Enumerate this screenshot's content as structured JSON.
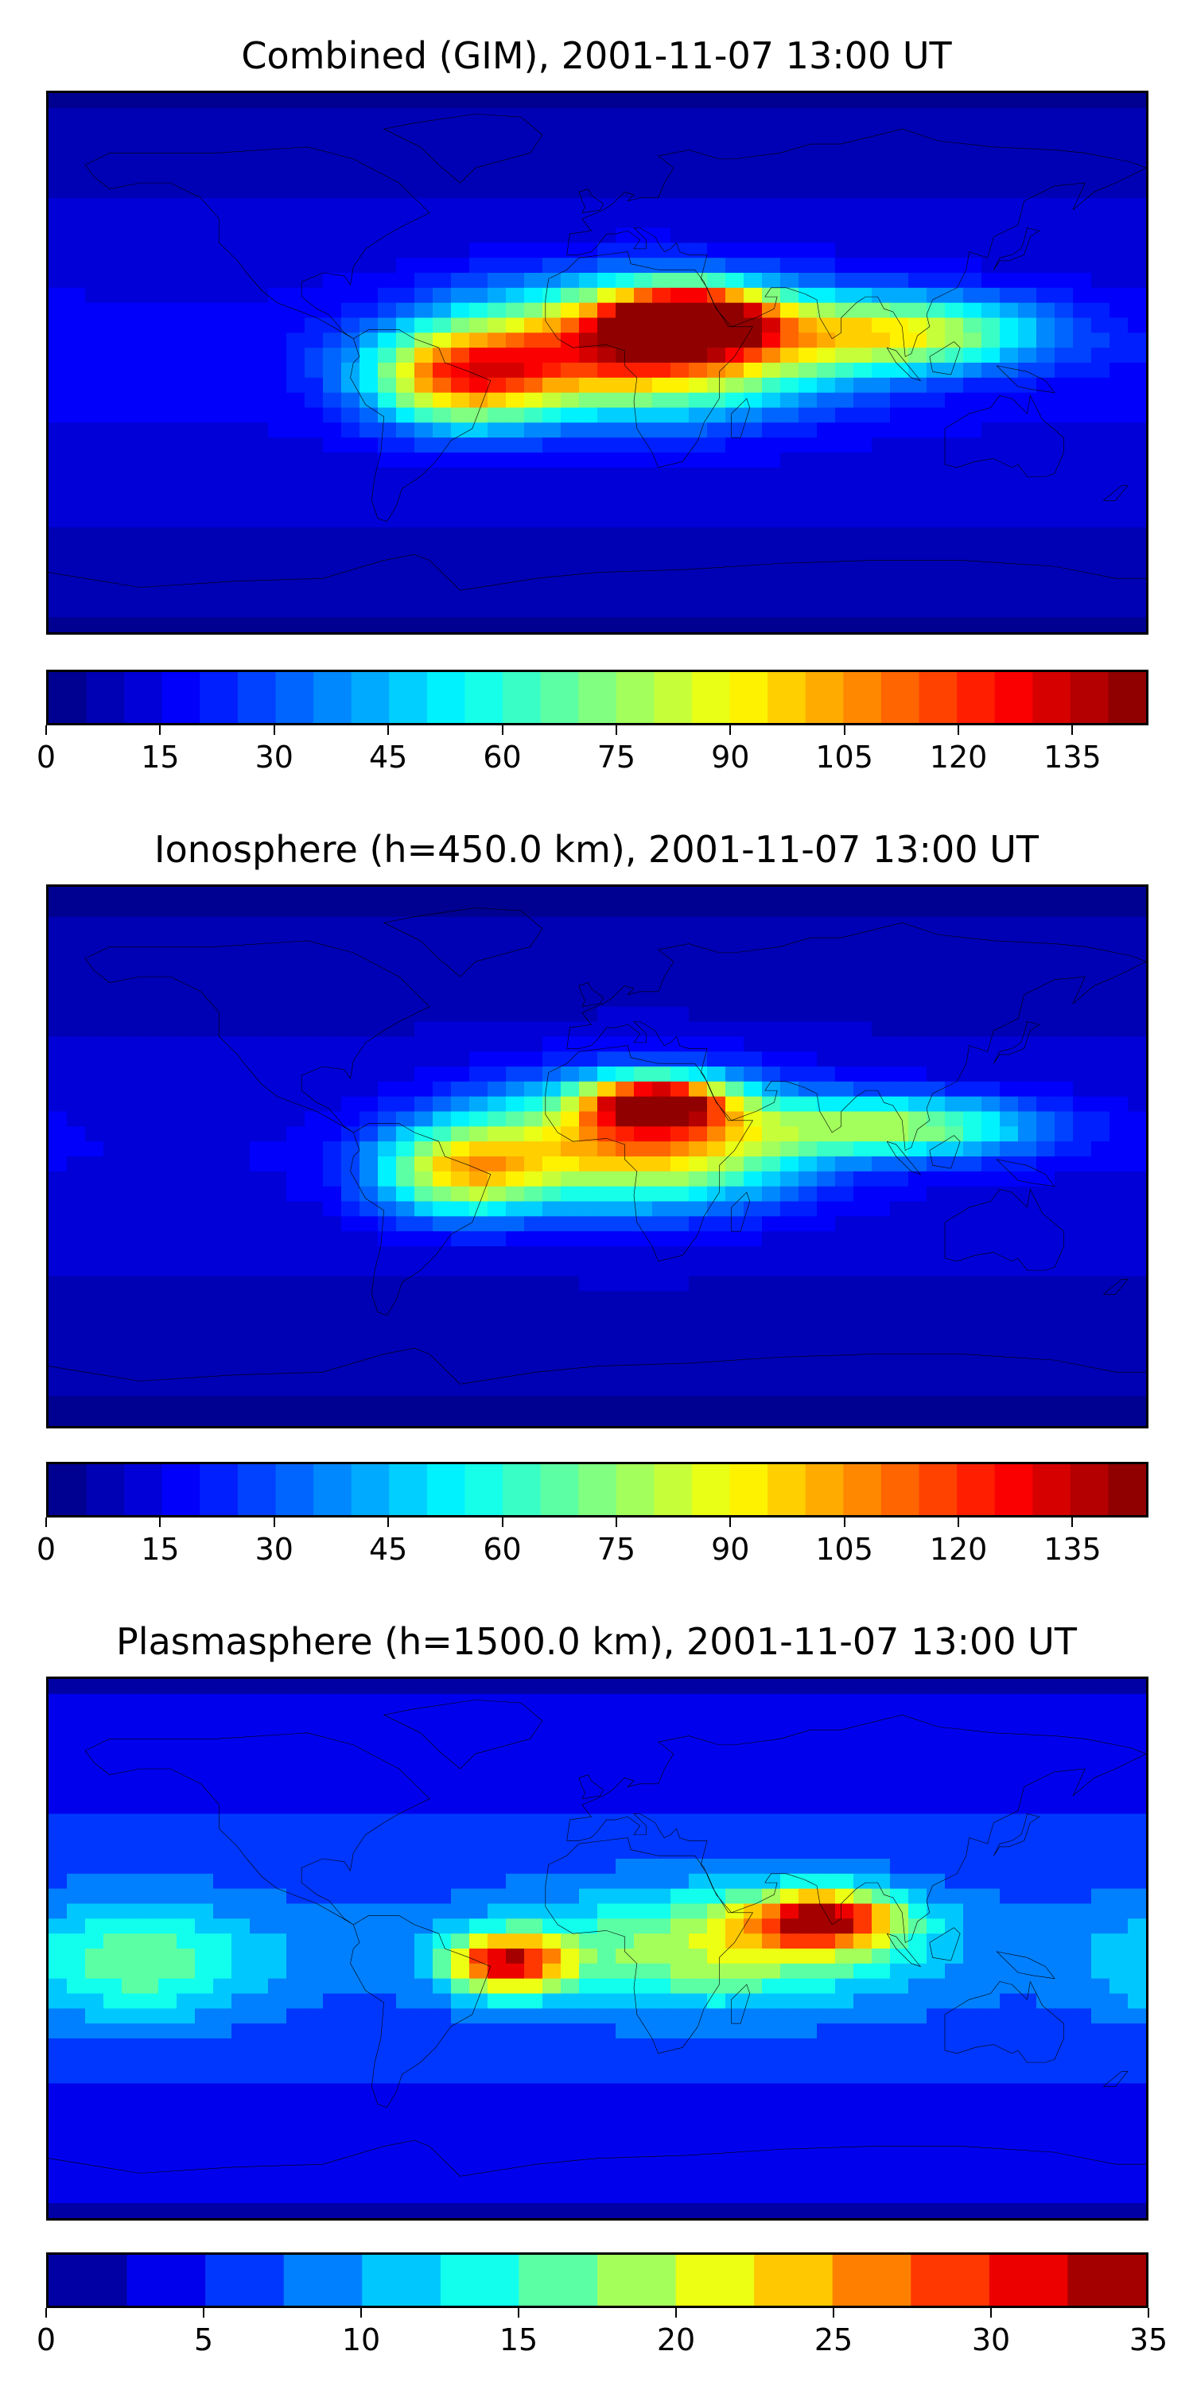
{
  "panels": [
    {
      "id": "combined",
      "title": "Combined (GIM), 2001-11-07 13:00 UT",
      "colorbar": {
        "min": 0,
        "max": 145,
        "levels": 29,
        "colormap": "jet",
        "ticks": [
          "0",
          "15",
          "30",
          "45",
          "60",
          "75",
          "90",
          "105",
          "120",
          "135"
        ]
      },
      "field": {
        "unit_range": [
          0,
          145
        ],
        "background": 18,
        "blobs": [
          {
            "lon": 15,
            "lat": 5,
            "value": 125,
            "rx": 55,
            "ry": 20
          },
          {
            "lon": -45,
            "lat": -5,
            "value": 95,
            "rx": 30,
            "ry": 16
          },
          {
            "lon": 100,
            "lat": 10,
            "value": 80,
            "rx": 45,
            "ry": 12
          },
          {
            "lon": 30,
            "lat": 15,
            "value": 120,
            "rx": 25,
            "ry": 10
          }
        ]
      }
    },
    {
      "id": "ionosphere",
      "title": "Ionosphere  (h=450.0 km), 2001-11-07 13:00 UT",
      "colorbar": {
        "min": 0,
        "max": 145,
        "levels": 29,
        "colormap": "jet",
        "ticks": [
          "0",
          "15",
          "30",
          "45",
          "60",
          "75",
          "90",
          "105",
          "120",
          "135"
        ]
      },
      "field": {
        "unit_range": [
          0,
          145
        ],
        "background": 15,
        "blobs": [
          {
            "lon": 15,
            "lat": 5,
            "value": 105,
            "rx": 50,
            "ry": 20
          },
          {
            "lon": -45,
            "lat": -5,
            "value": 80,
            "rx": 28,
            "ry": 15
          },
          {
            "lon": 100,
            "lat": 10,
            "value": 70,
            "rx": 45,
            "ry": 10
          },
          {
            "lon": 20,
            "lat": 18,
            "value": 110,
            "rx": 22,
            "ry": 8
          }
        ]
      }
    },
    {
      "id": "plasmasphere",
      "title": "Plasmasphere (h=1500.0 km), 2001-11-07 13:00 UT",
      "colorbar": {
        "min": 0,
        "max": 35,
        "levels": 14,
        "colormap": "jet",
        "ticks": [
          "0",
          "5",
          "10",
          "15",
          "20",
          "25",
          "30",
          "35"
        ]
      },
      "field": {
        "unit_range": [
          0,
          35
        ],
        "background": 8,
        "blobs": [
          {
            "lon": -30,
            "lat": -5,
            "value": 28,
            "rx": 20,
            "ry": 10
          },
          {
            "lon": 75,
            "lat": 10,
            "value": 27,
            "rx": 25,
            "ry": 10
          },
          {
            "lon": -150,
            "lat": -5,
            "value": 14,
            "rx": 40,
            "ry": 20
          },
          {
            "lon": 40,
            "lat": 0,
            "value": 17,
            "rx": 60,
            "ry": 20
          }
        ]
      }
    }
  ],
  "colors": {
    "coastline": "#000000",
    "jet": [
      "#00007f",
      "#0000ff",
      "#007fff",
      "#00ffff",
      "#7fff7f",
      "#ffff00",
      "#ff7f00",
      "#ff0000",
      "#7f0000"
    ]
  }
}
